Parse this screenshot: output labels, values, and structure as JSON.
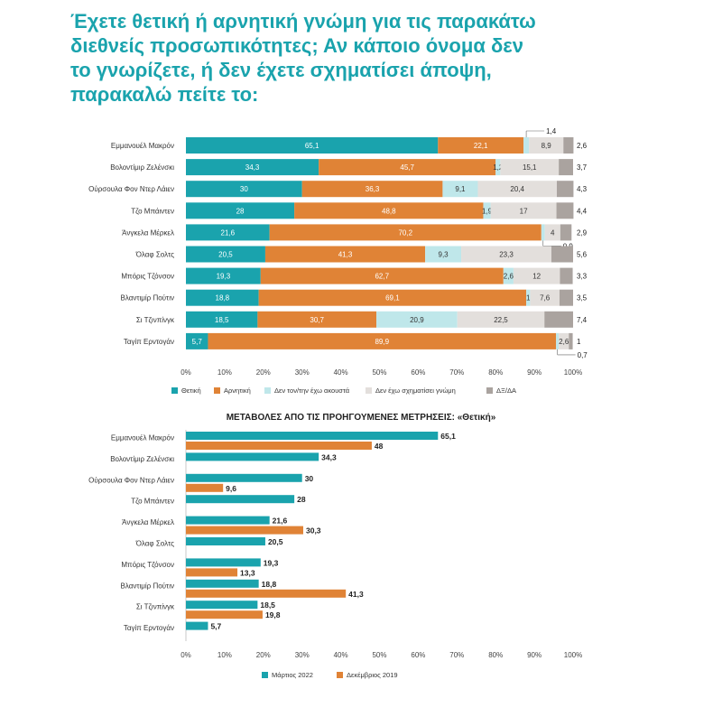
{
  "title_lines": [
    "Έχετε θετική ή αρνητική γνώμη για τις παρακάτω",
    "διεθνείς προσωπικότητες; Αν κάποιο όνομα δεν",
    "το γνωρίζετε, ή δεν έχετε σχηματίσει άποψη,",
    "παρακαλώ πείτε το:"
  ],
  "chart_data": [
    {
      "type": "bar",
      "stacked": true,
      "orientation": "horizontal",
      "categories": [
        "Εμμανουέλ Μακρόν",
        "Βολοντίμιρ Ζελένσκι",
        "Ούρσουλα Φον Ντερ Λάιεν",
        "Τζο Μπάιντεν",
        "Άνγκελα Μέρκελ",
        "Όλαφ Σολτς",
        "Μπόρις Τζόνσον",
        "Βλαντιμίρ Πούτιν",
        "Σι Τζινπίνγκ",
        "Ταγίπ Ερντογάν"
      ],
      "series": [
        {
          "name": "Θετική",
          "color": "#1aa3ad",
          "values": [
            65.1,
            34.3,
            30,
            28,
            21.6,
            20.5,
            19.3,
            18.8,
            18.5,
            5.7
          ]
        },
        {
          "name": "Αρνητική",
          "color": "#e08336",
          "values": [
            22.1,
            45.7,
            36.3,
            48.8,
            70.2,
            41.3,
            62.7,
            69.1,
            30.7,
            89.9
          ]
        },
        {
          "name": "Δεν τον/την έχω ακουστά",
          "color": "#bfe7ea",
          "values": [
            1.4,
            1.2,
            9.1,
            1.9,
            0.9,
            9.3,
            2.6,
            1,
            20.9,
            0.7
          ]
        },
        {
          "name": "Δεν έχω σχηματίσει γνώμη",
          "color": "#e3dfdc",
          "values": [
            8.9,
            15.1,
            20.4,
            17,
            4,
            23.3,
            12,
            7.6,
            22.5,
            2.6
          ]
        },
        {
          "name": "ΔΞ/ΔΑ",
          "color": "#aaa39f",
          "values": [
            2.6,
            3.7,
            4.3,
            4.4,
            2.9,
            5.6,
            3.3,
            3.5,
            7.4,
            1
          ]
        }
      ],
      "xlim": [
        0,
        100
      ],
      "xticks": [
        "0%",
        "10%",
        "20%",
        "30%",
        "40%",
        "50%",
        "60%",
        "70%",
        "80%",
        "90%",
        "100%"
      ],
      "legend_position": "bottom"
    },
    {
      "type": "bar",
      "orientation": "horizontal",
      "title": "ΜΕΤΑΒΟΛΕΣ ΑΠΟ ΤΙΣ ΠΡΟΗΓΟΥΜΕΝΕΣ ΜΕΤΡΗΣΕΙΣ: «Θετική»",
      "categories": [
        "Εμμανουέλ Μακρόν",
        "Βολοντίμιρ Ζελένσκι",
        "Ούρσουλα Φον Ντερ Λάιεν",
        "Τζο Μπάιντεν",
        "Άνγκελα Μέρκελ",
        "Όλαφ Σολτς",
        "Μπόρις Τζόνσον",
        "Βλαντιμίρ Πούτιν",
        "Σι Τζινπίνγκ",
        "Ταγίπ Ερντογάν"
      ],
      "series": [
        {
          "name": "Μάρτιος 2022",
          "color": "#1aa3ad",
          "values": [
            65.1,
            34.3,
            30,
            28,
            21.6,
            20.5,
            19.3,
            18.8,
            18.5,
            5.7
          ]
        },
        {
          "name": "Δεκέμβριος 2019",
          "color": "#e08336",
          "values": [
            48,
            null,
            9.6,
            null,
            30.3,
            null,
            13.3,
            41.3,
            19.8,
            null
          ]
        }
      ],
      "xlim": [
        0,
        100
      ],
      "xticks": [
        "0%",
        "10%",
        "20%",
        "30%",
        "40%",
        "50%",
        "60%",
        "70%",
        "80%",
        "90%",
        "100%"
      ],
      "legend_position": "bottom"
    }
  ]
}
